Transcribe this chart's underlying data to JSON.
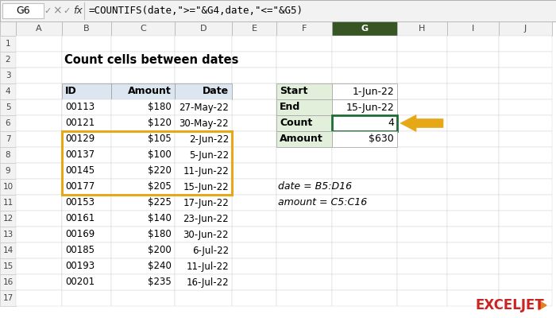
{
  "formula_bar_cell": "G6",
  "formula_bar_formula": "=COUNTIFS(date,\">=\"&G4,date,\"<=\"&G5)",
  "title": "Count cells between dates",
  "col_headers": [
    "A",
    "B",
    "C",
    "D",
    "E",
    "F",
    "G",
    "H",
    "I",
    "J"
  ],
  "n_rows": 17,
  "main_table_headers": [
    "ID",
    "Amount",
    "Date"
  ],
  "main_table_data": [
    [
      "00113",
      "$180",
      "27-May-22"
    ],
    [
      "00121",
      "$120",
      "30-May-22"
    ],
    [
      "00129",
      "$105",
      "2-Jun-22"
    ],
    [
      "00137",
      "$100",
      "5-Jun-22"
    ],
    [
      "00145",
      "$220",
      "11-Jun-22"
    ],
    [
      "00177",
      "$205",
      "15-Jun-22"
    ],
    [
      "00153",
      "$225",
      "17-Jun-22"
    ],
    [
      "00161",
      "$140",
      "23-Jun-22"
    ],
    [
      "00169",
      "$180",
      "30-Jun-22"
    ],
    [
      "00185",
      "$200",
      "6-Jul-22"
    ],
    [
      "00193",
      "$240",
      "11-Jul-22"
    ],
    [
      "00201",
      "$235",
      "16-Jul-22"
    ]
  ],
  "side_table_data": [
    [
      "Start",
      "1-Jun-22"
    ],
    [
      "End",
      "15-Jun-22"
    ],
    [
      "Count",
      "4"
    ],
    [
      "Amount",
      "$630"
    ]
  ],
  "highlight_data_rows": [
    2,
    3,
    4,
    5
  ],
  "notes": [
    "date = B5:D16",
    "amount = C5:C16"
  ],
  "header_bg": "#dce6f1",
  "highlight_border": "#e6a817",
  "side_header_bg": "#e2efda",
  "count_cell_border_color": "#1f6b38",
  "col_header_bg": "#f2f2f2",
  "selected_col_header_bg": "#375623",
  "selected_col_header_fg": "#ffffff",
  "arrow_color": "#e6a817",
  "watermark_text": "EXCELJET",
  "watermark_color": "#cc2222",
  "watermark_arrow_color": "#e67e22"
}
